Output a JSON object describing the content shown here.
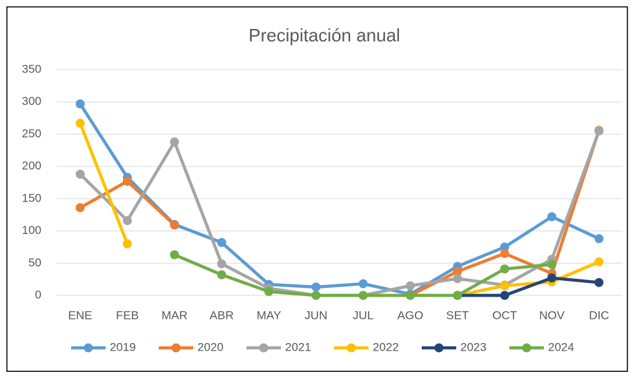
{
  "chart_data": {
    "type": "line",
    "title": "Precipitación anual",
    "categories": [
      "ENE",
      "FEB",
      "MAR",
      "ABR",
      "MAY",
      "JUN",
      "JUL",
      "AGO",
      "SET",
      "OCT",
      "NOV",
      "DIC"
    ],
    "ylim": [
      0,
      350
    ],
    "yticks": [
      0,
      50,
      100,
      150,
      200,
      250,
      300,
      350
    ],
    "grid": true,
    "legend": "bottom",
    "series": [
      {
        "name": "2019",
        "color": "#5b9bd5",
        "values": [
          297,
          183,
          110,
          82,
          17,
          13,
          18,
          2,
          45,
          75,
          122,
          88
        ]
      },
      {
        "name": "2020",
        "color": "#ed7d31",
        "values": [
          136,
          177,
          109,
          null,
          null,
          null,
          null,
          0,
          37,
          65,
          34,
          256
        ]
      },
      {
        "name": "2021",
        "color": "#a5a5a5",
        "values": [
          188,
          116,
          238,
          49,
          11,
          0,
          0,
          15,
          26,
          16,
          56,
          255
        ]
      },
      {
        "name": "2022",
        "color": "#ffc000",
        "values": [
          267,
          80,
          null,
          null,
          null,
          null,
          null,
          null,
          0,
          15,
          21,
          52
        ]
      },
      {
        "name": "2023",
        "color": "#264478",
        "values": [
          null,
          null,
          null,
          null,
          null,
          null,
          null,
          null,
          0,
          0,
          27,
          20
        ]
      },
      {
        "name": "2024",
        "color": "#70ad47",
        "values": [
          null,
          null,
          63,
          32,
          6,
          0,
          0,
          0,
          0,
          41,
          48,
          null
        ]
      }
    ]
  }
}
